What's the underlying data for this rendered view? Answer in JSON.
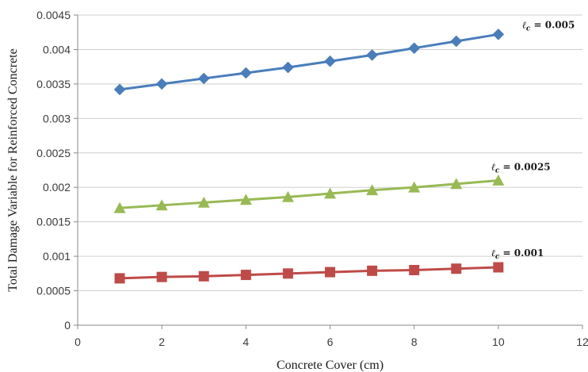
{
  "chart_data": {
    "type": "line",
    "title": "",
    "xlabel": "Concrete Cover (cm)",
    "ylabel": "Total Damage Variable for Reinforced Concrete",
    "xlim": [
      0,
      12
    ],
    "ylim": [
      0,
      0.0045
    ],
    "x_ticks": [
      "0",
      "2",
      "4",
      "6",
      "8",
      "10",
      "12"
    ],
    "y_ticks": [
      "0",
      "0.0005",
      "0.001",
      "0.0015",
      "0.002",
      "0.0025",
      "0.003",
      "0.0035",
      "0.004",
      "0.0045"
    ],
    "grid": true,
    "legend": "none",
    "x": [
      1,
      2,
      3,
      4,
      5,
      6,
      7,
      8,
      9,
      10
    ],
    "series": [
      {
        "name": "ℓc = 0.005",
        "label_name": "ℓ",
        "label_sub": "c",
        "label_rest": " = 0.005",
        "color": "#4a7ebb",
        "marker": "diamond",
        "values": [
          0.00342,
          0.0035,
          0.00358,
          0.00366,
          0.00374,
          0.00383,
          0.00392,
          0.00402,
          0.00412,
          0.00422
        ]
      },
      {
        "name": "ℓc = 0.0025",
        "label_name": "ℓ",
        "label_sub": "c",
        "label_rest": " = 0.0025",
        "color": "#98b954",
        "marker": "triangle",
        "values": [
          0.0017,
          0.00174,
          0.00178,
          0.00182,
          0.00186,
          0.00191,
          0.00196,
          0.002,
          0.00205,
          0.0021
        ]
      },
      {
        "name": "ℓc = 0.001",
        "label_name": "ℓ",
        "label_sub": "c",
        "label_rest": " = 0.001",
        "color": "#be4b48",
        "marker": "square",
        "values": [
          0.00068,
          0.0007,
          0.00071,
          0.00073,
          0.00075,
          0.00077,
          0.00079,
          0.0008,
          0.00082,
          0.00084
        ]
      }
    ]
  }
}
